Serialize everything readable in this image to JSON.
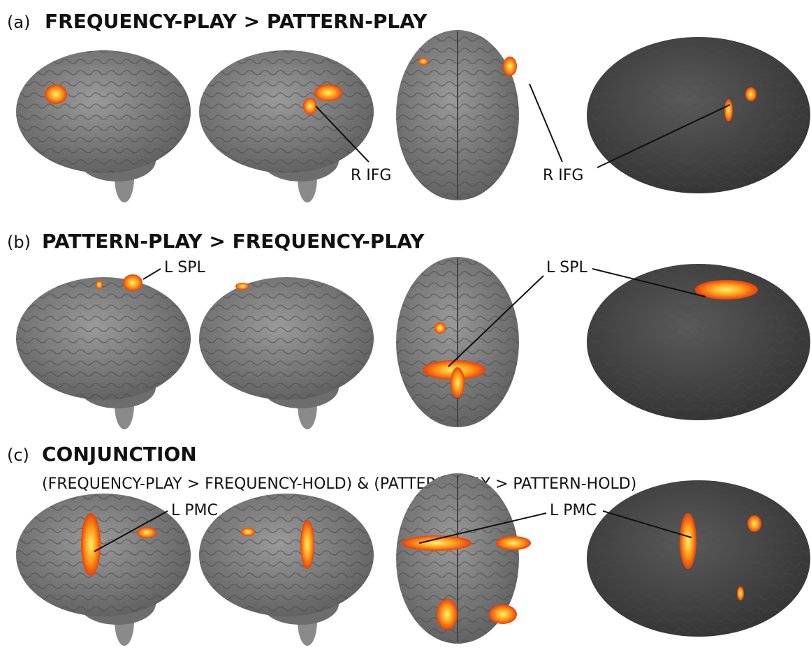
{
  "panels": [
    {
      "label": "(a)",
      "title": "FREQUENCY-PLAY > PATTERN-PLAY",
      "annotations": [
        "R IFG",
        "R IFG"
      ]
    },
    {
      "label": "(b)",
      "title": "PATTERN-PLAY > FREQUENCY-PLAY",
      "annotations": [
        "L SPL",
        "L SPL"
      ]
    },
    {
      "label": "(c)",
      "title": "CONJUNCTION",
      "subtitle": "(FREQUENCY-PLAY > FREQUENCY-HOLD) & (PATTERN-PLAY > PATTERN-HOLD)",
      "annotations": [
        "L PMC",
        "L PMC"
      ]
    }
  ]
}
